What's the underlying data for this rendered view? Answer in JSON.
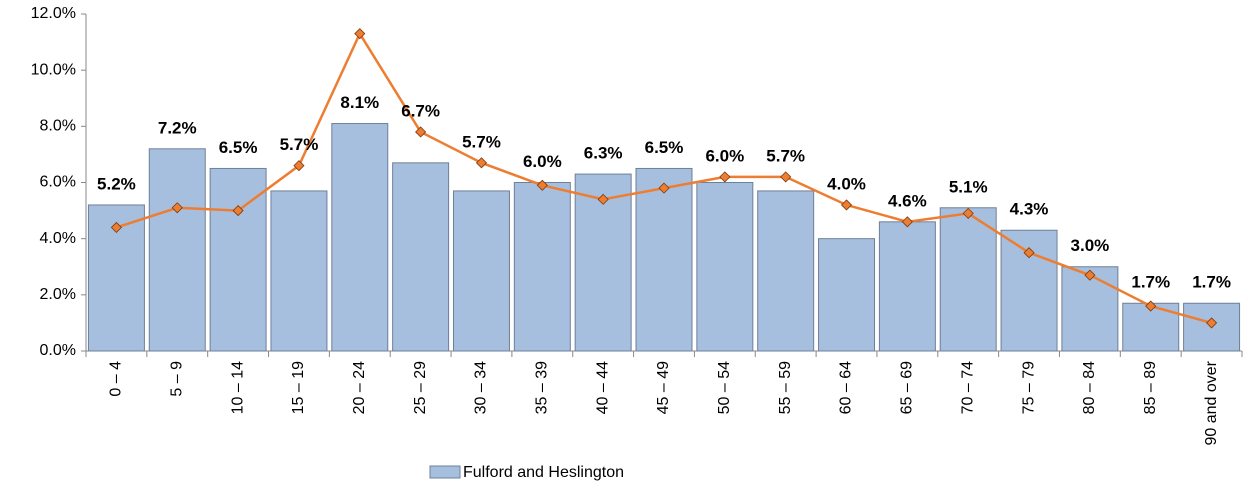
{
  "chart_data": {
    "type": "bar",
    "categories": [
      "0 – 4",
      "5 – 9",
      "10 – 14",
      "15 – 19",
      "20 – 24",
      "25 – 29",
      "30 – 34",
      "35 – 39",
      "40 – 44",
      "45 – 49",
      "50 – 54",
      "55 – 59",
      "60 – 64",
      "65 – 69",
      "70 – 74",
      "75 – 79",
      "80 – 84",
      "85 – 89",
      "90 and over"
    ],
    "series": [
      {
        "name": "Fulford and Heslington",
        "type": "bar",
        "color": "#a7bfde",
        "values": [
          5.2,
          7.2,
          6.5,
          5.7,
          8.1,
          6.7,
          5.7,
          6.0,
          6.3,
          6.5,
          6.0,
          5.7,
          4.0,
          4.6,
          5.1,
          4.3,
          3.0,
          1.7,
          1.7
        ],
        "value_labels": [
          "5.2%",
          "7.2%",
          "6.5%",
          "5.7%",
          "8.1%",
          "6.7%",
          "5.7%",
          "6.0%",
          "6.3%",
          "6.5%",
          "6.0%",
          "5.7%",
          "4.0%",
          "4.6%",
          "5.1%",
          "4.3%",
          "3.0%",
          "1.7%",
          "1.7%"
        ]
      },
      {
        "type": "line",
        "color": "#ed7d31",
        "values": [
          4.4,
          5.1,
          5.0,
          6.6,
          11.3,
          7.8,
          6.7,
          5.9,
          5.4,
          5.8,
          6.2,
          6.2,
          5.2,
          4.6,
          4.9,
          3.5,
          2.7,
          1.6,
          1.0
        ]
      }
    ],
    "ylim": [
      0,
      12
    ],
    "yticks": [
      {
        "value": 0,
        "label": "0.0%"
      },
      {
        "value": 2,
        "label": "2.0%"
      },
      {
        "value": 4,
        "label": "4.0%"
      },
      {
        "value": 6,
        "label": "6.0%"
      },
      {
        "value": 8,
        "label": "8.0%"
      },
      {
        "value": 10,
        "label": "10.0%"
      },
      {
        "value": 12,
        "label": "12.0%"
      }
    ],
    "legend": "bottom"
  }
}
